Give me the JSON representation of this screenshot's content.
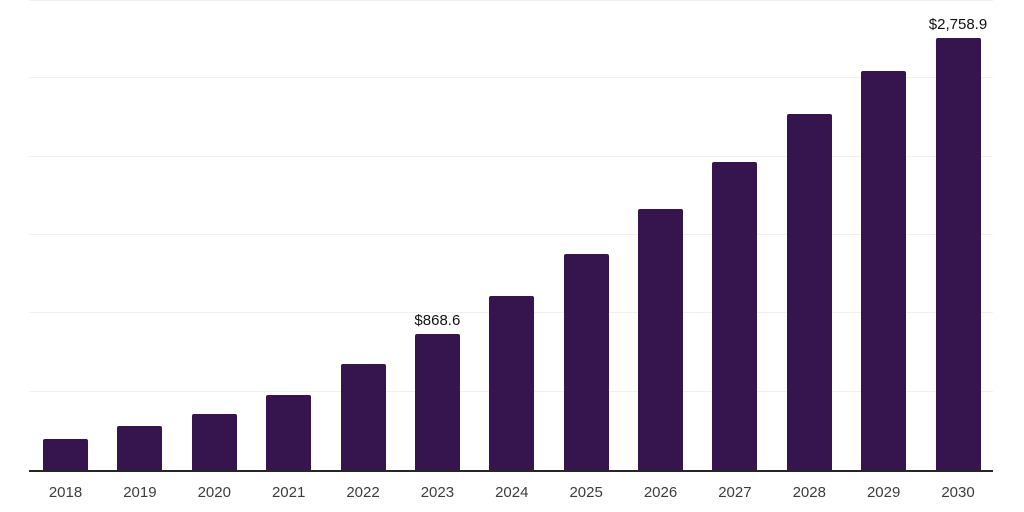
{
  "chart_data": {
    "type": "bar",
    "title": "",
    "xlabel": "",
    "ylabel": "",
    "categories": [
      "2018",
      "2019",
      "2020",
      "2021",
      "2022",
      "2023",
      "2024",
      "2025",
      "2026",
      "2027",
      "2028",
      "2029",
      "2030"
    ],
    "values": [
      201,
      282,
      355,
      479,
      676,
      868.6,
      1110,
      1378,
      1666,
      1968,
      2270,
      2547,
      2758.9
    ],
    "data_labels": [
      {
        "index": 5,
        "category": "2023",
        "text": "$868.6"
      },
      {
        "index": 12,
        "category": "2030",
        "text": "$2,758.9"
      }
    ],
    "ylim": [
      0,
      3000
    ],
    "gridline_values": [
      500,
      1000,
      1500,
      2000,
      2500,
      3000
    ],
    "grid": "horizontal-only",
    "y_tick_labels": "none",
    "legend": "none",
    "colors": {
      "bar": "#36154E",
      "axis_line": "#262626",
      "gridline": "#F0F0F0",
      "tick_label": "#3D3D3D",
      "data_label": "#111111",
      "background": "#FFFFFF"
    }
  }
}
